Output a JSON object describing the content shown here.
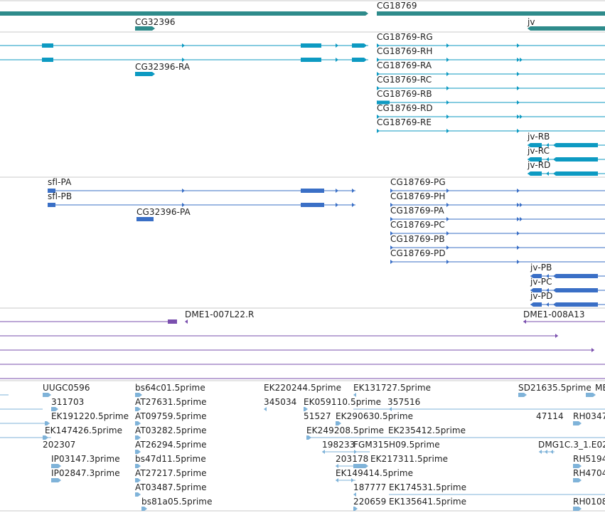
{
  "colors": {
    "gene": "#2e8b8b",
    "transcript_rna": "#0d9ac2",
    "transcript_protein": "#3a6fc6",
    "clone": "#7a4fae",
    "est": "#7fb3d9",
    "separator": "#c8c8c8",
    "label_text": "#1e1e1e"
  },
  "tracks": {
    "genes": {
      "items": [
        {
          "label": "CG18769"
        },
        {
          "label": "CG32396"
        },
        {
          "label": "jv"
        }
      ]
    },
    "transcripts": {
      "items": [
        {
          "label": "CG32396-RA"
        },
        {
          "label": "CG18769-RG"
        },
        {
          "label": "CG18769-RH"
        },
        {
          "label": "CG18769-RA"
        },
        {
          "label": "CG18769-RC"
        },
        {
          "label": "CG18769-RB"
        },
        {
          "label": "CG18769-RD"
        },
        {
          "label": "CG18769-RE"
        },
        {
          "label": "jv-RB"
        },
        {
          "label": "jv-RC"
        },
        {
          "label": "jv-RD"
        }
      ]
    },
    "proteins": {
      "items": [
        {
          "label": "sfl-PA"
        },
        {
          "label": "sfl-PB"
        },
        {
          "label": "CG32396-PA"
        },
        {
          "label": "CG18769-PG"
        },
        {
          "label": "CG18769-PH"
        },
        {
          "label": "CG18769-PA"
        },
        {
          "label": "CG18769-PC"
        },
        {
          "label": "CG18769-PB"
        },
        {
          "label": "CG18769-PD"
        },
        {
          "label": "jv-PB"
        },
        {
          "label": "jv-PC"
        },
        {
          "label": "jv-PD"
        }
      ]
    },
    "clones": {
      "items": [
        {
          "label": "DME1-007L22.R"
        },
        {
          "label": "DME1-008A13"
        }
      ]
    },
    "ests": {
      "items": [
        {
          "label": "UUGC0596"
        },
        {
          "label": "311703"
        },
        {
          "label": "EK191220.5prime"
        },
        {
          "label": "EK147426.5prime"
        },
        {
          "label": "202307"
        },
        {
          "label": "IP03147.3prime"
        },
        {
          "label": "IP02847.3prime"
        },
        {
          "label": "bs64c01.5prime"
        },
        {
          "label": "AT27631.5prime"
        },
        {
          "label": "AT09759.5prime"
        },
        {
          "label": "AT03282.5prime"
        },
        {
          "label": "AT26294.5prime"
        },
        {
          "label": "bs47d11.5prime"
        },
        {
          "label": "AT27217.5prime"
        },
        {
          "label": "AT03487.5prime"
        },
        {
          "label": "bs81a05.5prime"
        },
        {
          "label": "EK220244.5prime"
        },
        {
          "label": "345034"
        },
        {
          "label": "EK059110.5prime"
        },
        {
          "label": "51527"
        },
        {
          "label": "EK290630.5prime"
        },
        {
          "label": "EK249208.5prime"
        },
        {
          "label": "198233"
        },
        {
          "label": "FGM315H09.5prime"
        },
        {
          "label": "203178"
        },
        {
          "label": "EK217311.5prime"
        },
        {
          "label": "EK149414.5prime"
        },
        {
          "label": "187777"
        },
        {
          "label": "EK174531.5prime"
        },
        {
          "label": "220659"
        },
        {
          "label": "EK135641.5prime"
        },
        {
          "label": "EK131727.5prime"
        },
        {
          "label": "357516"
        },
        {
          "label": "EK235412.5prime"
        },
        {
          "label": "SD21635.5prime"
        },
        {
          "label": "ME"
        },
        {
          "label": "47114"
        },
        {
          "label": "RH0347"
        },
        {
          "label": "DMG1C.3_1.E02"
        },
        {
          "label": "RH5194"
        },
        {
          "label": "RH4704"
        },
        {
          "label": "RH0108"
        }
      ]
    }
  }
}
